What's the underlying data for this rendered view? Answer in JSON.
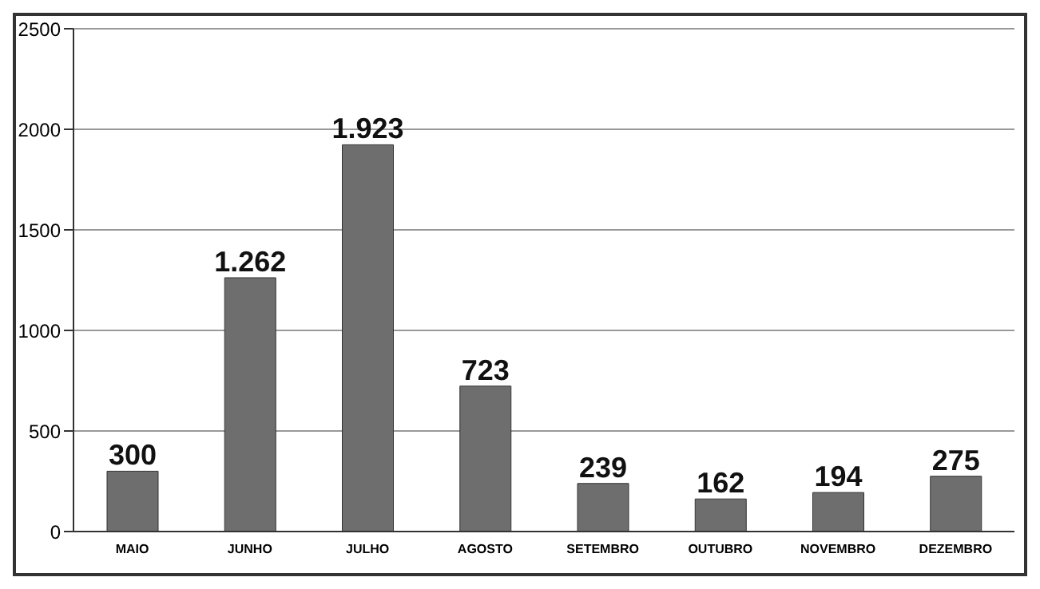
{
  "chart_data": {
    "type": "bar",
    "categories": [
      "MAIO",
      "JUNHO",
      "JULHO",
      "AGOSTO",
      "SETEMBRO",
      "OUTUBRO",
      "NOVEMBRO",
      "DEZEMBRO"
    ],
    "values": [
      300,
      1262,
      1923,
      723,
      239,
      162,
      194,
      275
    ],
    "value_labels": [
      "300",
      "1.262",
      "1.923",
      "723",
      "239",
      "162",
      "194",
      "275"
    ],
    "color": "#6e6e6e",
    "ylim": [
      0,
      2500
    ],
    "yticks": [
      0,
      500,
      1000,
      1500,
      2000,
      2500
    ],
    "grid": "y"
  }
}
